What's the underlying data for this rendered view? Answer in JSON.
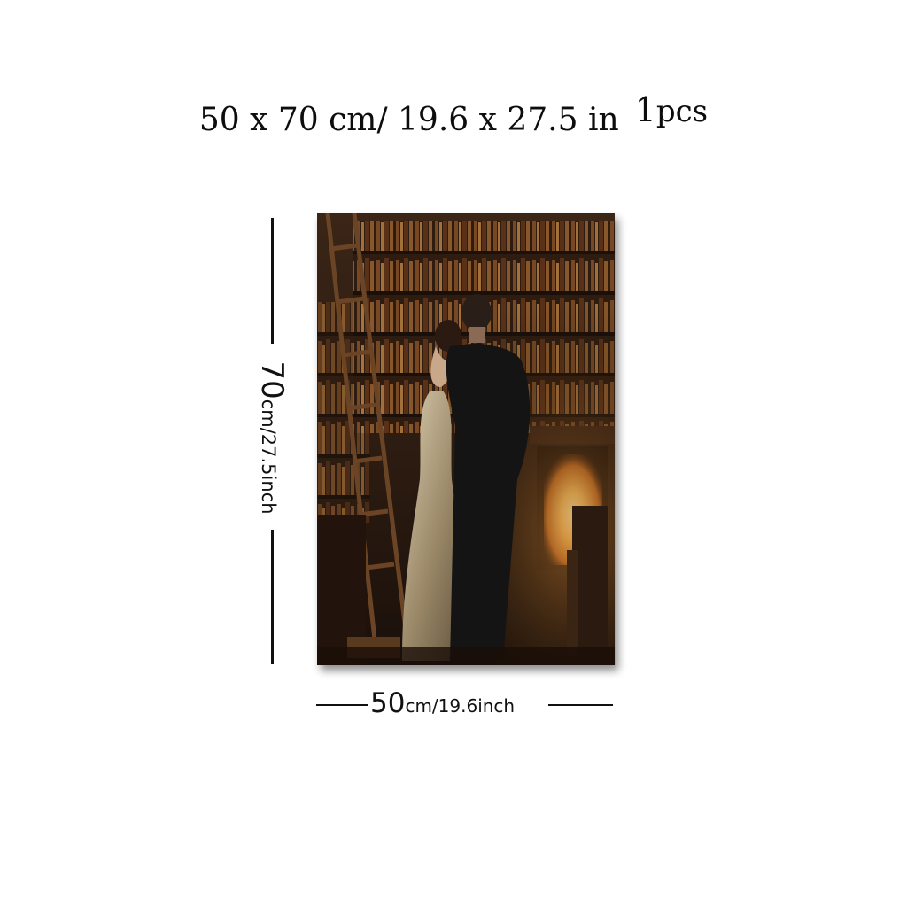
{
  "header": {
    "dimensions": "50 x 70 cm/ 19.6 x 27.5 in",
    "quantity_number": "1",
    "quantity_unit": "pcs"
  },
  "height_label": {
    "value": "70",
    "unit": "cm/27.5inch"
  },
  "width_label": {
    "value": "50",
    "unit": "cm/19.6inch"
  },
  "colors": {
    "background": "#ffffff",
    "line": "#111111",
    "painting_dark": "#2a1a10",
    "painting_warm": "#f2c060"
  }
}
